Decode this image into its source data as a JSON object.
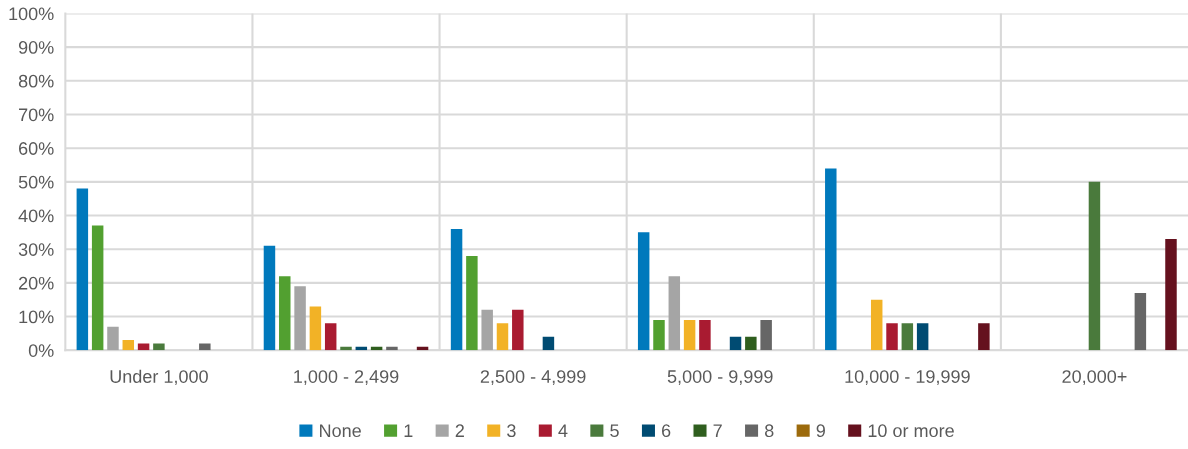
{
  "chart_data": {
    "type": "bar",
    "categories": [
      "Under 1,000",
      "1,000 - 2,499",
      "2,500 - 4,999",
      "5,000 - 9,999",
      "10,000 - 19,999",
      "20,000+"
    ],
    "series": [
      {
        "name": "None",
        "color": "#0079bc",
        "values": [
          48,
          31,
          36,
          35,
          54,
          null
        ]
      },
      {
        "name": "1",
        "color": "#52a030",
        "values": [
          37,
          22,
          28,
          9,
          null,
          null
        ]
      },
      {
        "name": "2",
        "color": "#a5a5a5",
        "values": [
          7,
          19,
          12,
          22,
          null,
          null
        ]
      },
      {
        "name": "3",
        "color": "#f2b226",
        "values": [
          3,
          13,
          8,
          9,
          15,
          null
        ]
      },
      {
        "name": "4",
        "color": "#a91b31",
        "values": [
          2,
          8,
          12,
          9,
          8,
          null
        ]
      },
      {
        "name": "5",
        "color": "#4a7a3c",
        "values": [
          2,
          1,
          null,
          null,
          8,
          50
        ]
      },
      {
        "name": "6",
        "color": "#004b72",
        "values": [
          null,
          1,
          4,
          4,
          8,
          null
        ]
      },
      {
        "name": "7",
        "color": "#2f5e1e",
        "values": [
          null,
          1,
          null,
          4,
          null,
          null
        ]
      },
      {
        "name": "8",
        "color": "#666666",
        "values": [
          2,
          1,
          null,
          9,
          null,
          17
        ]
      },
      {
        "name": "9",
        "color": "#9c6a0c",
        "values": [
          null,
          null,
          null,
          null,
          null,
          null
        ]
      },
      {
        "name": "10 or more",
        "color": "#65111e",
        "values": [
          null,
          1,
          null,
          null,
          8,
          33
        ]
      }
    ],
    "ylim": [
      0,
      100
    ],
    "yticks": [
      {
        "value": 0,
        "label": "0%"
      },
      {
        "value": 10,
        "label": "10%"
      },
      {
        "value": 20,
        "label": "20%"
      },
      {
        "value": 30,
        "label": "30%"
      },
      {
        "value": 40,
        "label": "40%"
      },
      {
        "value": 50,
        "label": "50%"
      },
      {
        "value": 60,
        "label": "60%"
      },
      {
        "value": 70,
        "label": "70%"
      },
      {
        "value": 80,
        "label": "80%"
      },
      {
        "value": 90,
        "label": "90%"
      },
      {
        "value": 100,
        "label": "100%"
      }
    ],
    "grid": true,
    "legend": "bottom"
  }
}
